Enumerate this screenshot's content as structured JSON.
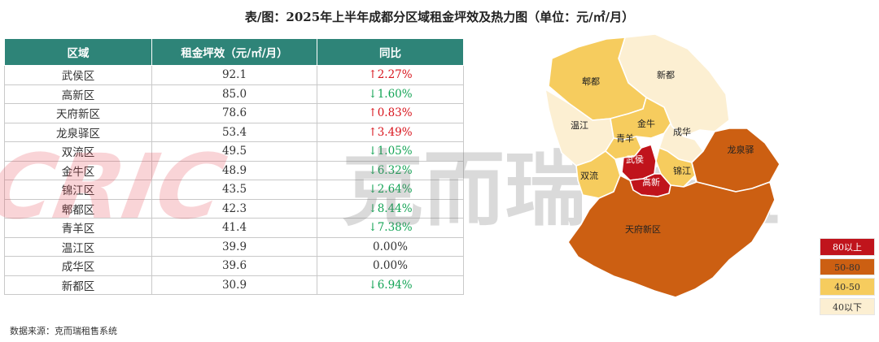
{
  "title": "表/图：2025年上半年成都分区域租金坪效及热力图（单位：元/㎡/月）",
  "table": {
    "headers": [
      "区域",
      "租金坪效（元/㎡/月）",
      "同比"
    ],
    "rows": [
      {
        "district": "武侯区",
        "rent": "92.1",
        "yoy": "↑2.27%",
        "dir": "up"
      },
      {
        "district": "高新区",
        "rent": "85.0",
        "yoy": "↓1.60%",
        "dir": "down"
      },
      {
        "district": "天府新区",
        "rent": "78.6",
        "yoy": "↑0.83%",
        "dir": "up"
      },
      {
        "district": "龙泉驿区",
        "rent": "53.4",
        "yoy": "↑3.49%",
        "dir": "up"
      },
      {
        "district": "双流区",
        "rent": "49.5",
        "yoy": "↓1.05%",
        "dir": "down"
      },
      {
        "district": "金牛区",
        "rent": "48.9",
        "yoy": "↓6.32%",
        "dir": "down"
      },
      {
        "district": "锦江区",
        "rent": "43.5",
        "yoy": "↓2.64%",
        "dir": "down"
      },
      {
        "district": "郫都区",
        "rent": "42.3",
        "yoy": "↓8.44%",
        "dir": "down"
      },
      {
        "district": "青羊区",
        "rent": "41.4",
        "yoy": "↓7.38%",
        "dir": "down"
      },
      {
        "district": "温江区",
        "rent": "39.9",
        "yoy": "0.00%",
        "dir": "flat"
      },
      {
        "district": "成华区",
        "rent": "39.6",
        "yoy": "0.00%",
        "dir": "flat"
      },
      {
        "district": "新都区",
        "rent": "30.9",
        "yoy": "↓6.94%",
        "dir": "down"
      }
    ]
  },
  "chart_data": {
    "type": "heatmap",
    "title": "表/图：2025年上半年成都分区域租金坪效及热力图（单位：元/㎡/月）",
    "categories": [
      "武侯区",
      "高新区",
      "天府新区",
      "龙泉驿区",
      "双流区",
      "金牛区",
      "锦江区",
      "郫都区",
      "青羊区",
      "温江区",
      "成华区",
      "新都区"
    ],
    "values": [
      92.1,
      85.0,
      78.6,
      53.4,
      49.5,
      48.9,
      43.5,
      42.3,
      41.4,
      39.9,
      39.6,
      30.9
    ],
    "yoy_percent": [
      2.27,
      -1.6,
      0.83,
      3.49,
      -1.05,
      -6.32,
      -2.64,
      -8.44,
      -7.38,
      0.0,
      0.0,
      -6.94
    ],
    "map_labels": [
      "郫都",
      "新都",
      "温江",
      "金牛",
      "青羊",
      "成华",
      "武侯",
      "高新",
      "锦江",
      "双流",
      "龙泉驿",
      "天府新区"
    ],
    "legend": [
      {
        "label": "80以上",
        "color": "#c0141c"
      },
      {
        "label": "50-80",
        "color": "#cc5f12"
      },
      {
        "label": "40-50",
        "color": "#f6cc5e"
      },
      {
        "label": "40以下",
        "color": "#fcefd2"
      }
    ]
  },
  "source": "数据来源：克而瑞租售系统",
  "watermark": {
    "logo": "CRIC",
    "text": "克而瑞·长租"
  }
}
